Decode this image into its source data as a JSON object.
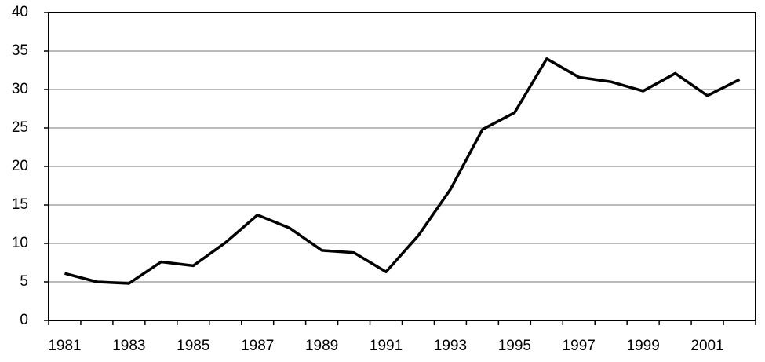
{
  "chart_data": {
    "type": "line",
    "categories": [
      "1981",
      null,
      "1983",
      null,
      "1985",
      null,
      "1987",
      null,
      "1989",
      null,
      "1991",
      null,
      "1993",
      null,
      "1995",
      null,
      "1997",
      null,
      "1999",
      null,
      "2001",
      null
    ],
    "values": [
      6.1,
      5.0,
      4.8,
      7.6,
      7.1,
      10.1,
      13.7,
      12.0,
      9.1,
      8.8,
      6.3,
      11.0,
      17.0,
      24.8,
      27.0,
      34.0,
      31.6,
      31.0,
      29.8,
      32.1,
      29.2,
      31.3
    ],
    "color": "#000000",
    "ylim": [
      0,
      40
    ],
    "yticks": [
      0,
      5,
      10,
      15,
      20,
      25,
      30,
      35,
      40
    ],
    "grid": true
  }
}
